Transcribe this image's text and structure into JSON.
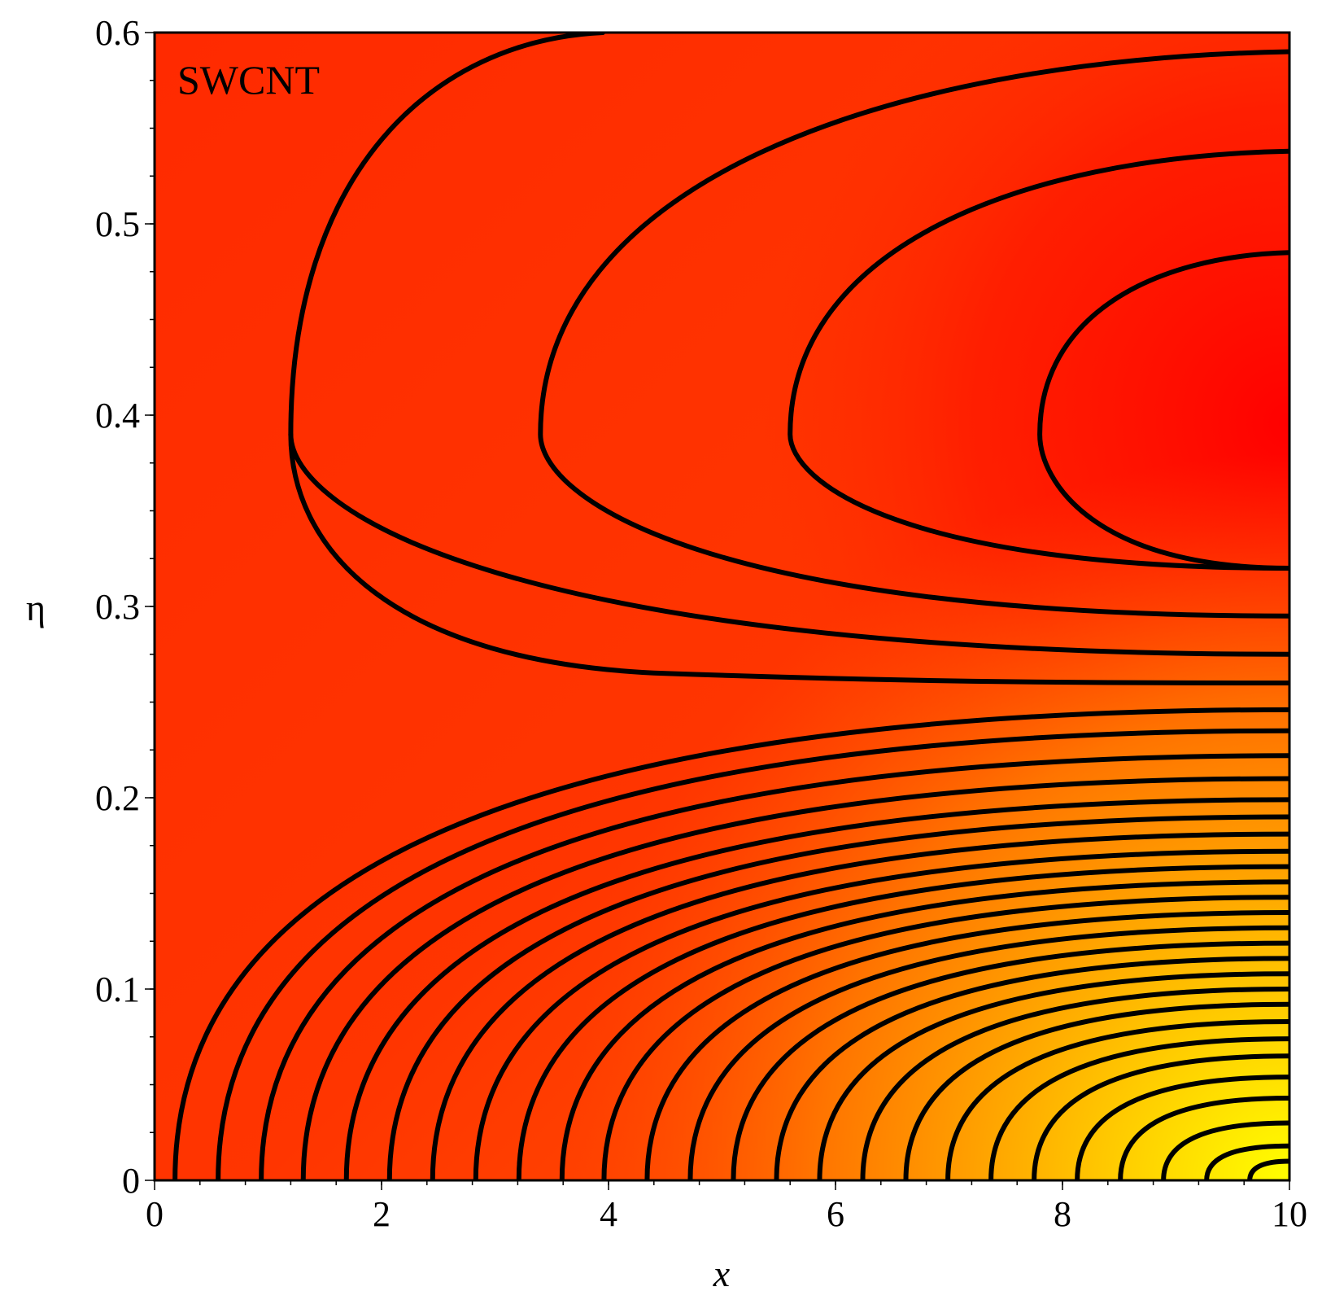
{
  "chart_data": {
    "type": "contour",
    "annotation": "SWCNT",
    "xlabel": "x",
    "ylabel": "η",
    "xlim": [
      0,
      10
    ],
    "ylim": [
      0,
      0.6
    ],
    "x_ticks": [
      0,
      2,
      4,
      6,
      8,
      10
    ],
    "x_tick_labels": [
      "0",
      "2",
      "4",
      "6",
      "8",
      "10"
    ],
    "y_ticks": [
      0,
      0.1,
      0.2,
      0.3,
      0.4,
      0.5,
      0.6
    ],
    "y_tick_labels": [
      "0",
      "0.1",
      "0.2",
      "0.3",
      "0.4",
      "0.5",
      "0.6"
    ],
    "x_minor_step": 0.4,
    "y_minor_step": 0.025,
    "grid": false,
    "colormap": {
      "low": "#ff0000",
      "mid": "#ff6600",
      "high": "#ffff00"
    },
    "hump_contours": [
      {
        "vertex_x": 1.2,
        "vertex_y": 0.39,
        "end_x": 3.95,
        "end_y": 0.6,
        "lower_end_y": 0.275
      },
      {
        "vertex_x": 3.4,
        "vertex_y": 0.39,
        "end_x": 10,
        "end_y": 0.59,
        "lower_end_y": 0.295
      },
      {
        "vertex_x": 5.6,
        "vertex_y": 0.39,
        "end_x": 10,
        "end_y": 0.538,
        "lower_end_y": 0.32
      },
      {
        "vertex_x": 7.8,
        "vertex_y": 0.39,
        "end_x": 10,
        "end_y": 0.485,
        "lower_end_y": 0.32
      }
    ],
    "upper_boundary_contour": {
      "start_x": 1.2,
      "end_x": 10,
      "end_y": 0.26
    },
    "lower_contours": [
      {
        "x0": 0.18,
        "end_y": 0.246
      },
      {
        "x0": 0.56,
        "end_y": 0.235
      },
      {
        "x0": 0.94,
        "end_y": 0.222
      },
      {
        "x0": 1.31,
        "end_y": 0.21
      },
      {
        "x0": 1.69,
        "end_y": 0.199
      },
      {
        "x0": 2.07,
        "end_y": 0.19
      },
      {
        "x0": 2.45,
        "end_y": 0.181
      },
      {
        "x0": 2.83,
        "end_y": 0.172
      },
      {
        "x0": 3.21,
        "end_y": 0.164
      },
      {
        "x0": 3.59,
        "end_y": 0.156
      },
      {
        "x0": 3.96,
        "end_y": 0.148
      },
      {
        "x0": 4.34,
        "end_y": 0.14
      },
      {
        "x0": 4.72,
        "end_y": 0.132
      },
      {
        "x0": 5.1,
        "end_y": 0.124
      },
      {
        "x0": 5.48,
        "end_y": 0.116
      },
      {
        "x0": 5.86,
        "end_y": 0.108
      },
      {
        "x0": 6.24,
        "end_y": 0.1
      },
      {
        "x0": 6.62,
        "end_y": 0.092
      },
      {
        "x0": 6.99,
        "end_y": 0.083
      },
      {
        "x0": 7.37,
        "end_y": 0.074
      },
      {
        "x0": 7.75,
        "end_y": 0.065
      },
      {
        "x0": 8.13,
        "end_y": 0.054
      },
      {
        "x0": 8.51,
        "end_y": 0.043
      },
      {
        "x0": 8.89,
        "end_y": 0.03
      },
      {
        "x0": 9.27,
        "end_y": 0.018
      },
      {
        "x0": 9.65,
        "end_y": 0.01
      }
    ]
  }
}
